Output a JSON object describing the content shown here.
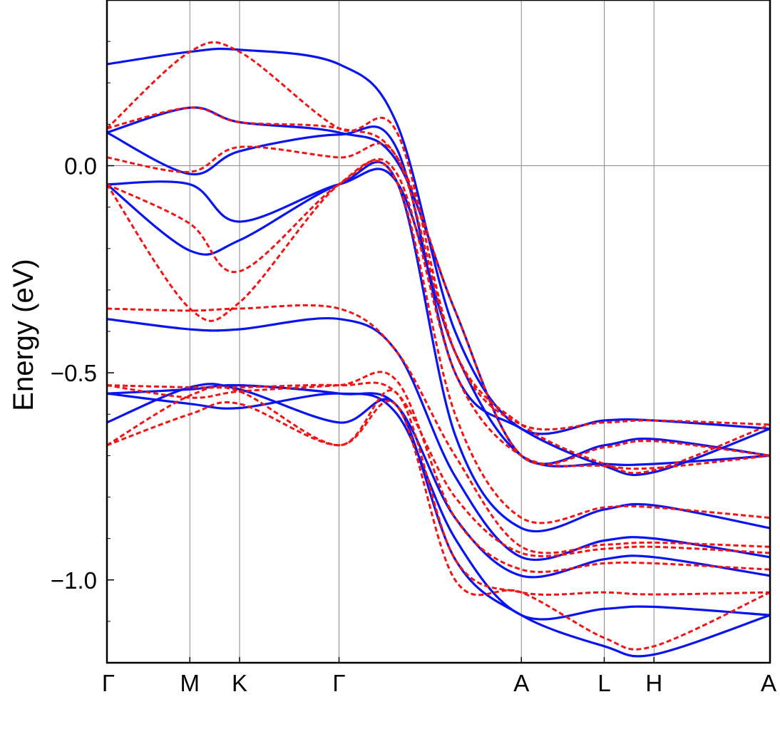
{
  "chart_data": {
    "type": "line",
    "title": "",
    "xlabel": "",
    "ylabel": "Energy (eV)",
    "ylim": [
      -1.2,
      0.4
    ],
    "xlim": [
      0,
      8
    ],
    "grid": true,
    "x_ticks": [
      {
        "label": "Γ",
        "x": 0
      },
      {
        "label": "M",
        "x": 1
      },
      {
        "label": "K",
        "x": 1.6
      },
      {
        "label": "Γ",
        "x": 2.8
      },
      {
        "label": "A",
        "x": 5
      },
      {
        "label": "L",
        "x": 6
      },
      {
        "label": "H",
        "x": 6.6
      },
      {
        "label": "A",
        "x": 8
      }
    ],
    "y_ticks": [
      {
        "label": "0.0",
        "value": 0.0
      },
      {
        "label": "-0.5",
        "value": -0.5
      },
      {
        "label": "-1.0",
        "value": -1.0
      }
    ],
    "x": [
      0,
      1,
      1.6,
      2.8,
      3.5,
      4.2,
      5,
      6,
      6.6,
      8
    ],
    "series": [
      {
        "style": "solid",
        "color": "#0a14f0",
        "values": [
          0.245,
          0.275,
          0.28,
          0.245,
          0.1,
          -0.4,
          -0.635,
          -0.615,
          -0.615,
          -0.635
        ]
      },
      {
        "style": "solid",
        "color": "#0a14f0",
        "values": [
          0.08,
          0.14,
          0.105,
          0.08,
          0.01,
          -0.35,
          -0.7,
          -0.675,
          -0.66,
          -0.7
        ]
      },
      {
        "style": "solid",
        "color": "#0a14f0",
        "values": [
          0.08,
          -0.02,
          0.035,
          0.075,
          0.04,
          -0.5,
          -0.635,
          -0.725,
          -0.74,
          -0.635
        ]
      },
      {
        "style": "solid",
        "color": "#0a14f0",
        "values": [
          -0.045,
          -0.045,
          -0.135,
          -0.045,
          -0.04,
          -0.45,
          -0.7,
          -0.72,
          -0.72,
          -0.7
        ]
      },
      {
        "style": "solid",
        "color": "#0a14f0",
        "values": [
          -0.045,
          -0.205,
          -0.18,
          -0.045,
          -0.04,
          -0.65,
          -0.875,
          -0.83,
          -0.82,
          -0.875
        ]
      },
      {
        "style": "solid",
        "color": "#0a14f0",
        "values": [
          -0.37,
          -0.395,
          -0.395,
          -0.37,
          -0.45,
          -0.75,
          -0.945,
          -0.905,
          -0.9,
          -0.945
        ]
      },
      {
        "style": "solid",
        "color": "#0a14f0",
        "values": [
          -0.55,
          -0.54,
          -0.53,
          -0.55,
          -0.58,
          -0.85,
          -0.99,
          -0.95,
          -0.945,
          -0.99
        ]
      },
      {
        "style": "solid",
        "color": "#0a14f0",
        "values": [
          -0.55,
          -0.575,
          -0.585,
          -0.55,
          -0.6,
          -0.9,
          -1.085,
          -1.07,
          -1.065,
          -1.085
        ]
      },
      {
        "style": "solid",
        "color": "#0a14f0",
        "values": [
          -0.62,
          -0.535,
          -0.54,
          -0.62,
          -0.58,
          -0.95,
          -1.085,
          -1.16,
          -1.18,
          -1.085
        ]
      },
      {
        "style": "dashed",
        "color": "#f01414",
        "values": [
          0.09,
          0.275,
          0.275,
          0.09,
          0.08,
          -0.45,
          -0.625,
          -0.62,
          -0.615,
          -0.625
        ]
      },
      {
        "style": "dashed",
        "color": "#f01414",
        "values": [
          0.09,
          0.14,
          0.105,
          0.09,
          0.02,
          -0.35,
          -0.7,
          -0.68,
          -0.665,
          -0.7
        ]
      },
      {
        "style": "dashed",
        "color": "#f01414",
        "values": [
          0.02,
          -0.015,
          0.045,
          0.02,
          0.02,
          -0.45,
          -0.625,
          -0.72,
          -0.735,
          -0.625
        ]
      },
      {
        "style": "dashed",
        "color": "#f01414",
        "values": [
          -0.045,
          -0.14,
          -0.255,
          -0.045,
          -0.02,
          -0.5,
          -0.7,
          -0.725,
          -0.73,
          -0.7
        ]
      },
      {
        "style": "dashed",
        "color": "#f01414",
        "values": [
          -0.045,
          -0.345,
          -0.33,
          -0.045,
          -0.04,
          -0.6,
          -0.85,
          -0.825,
          -0.825,
          -0.85
        ]
      },
      {
        "style": "dashed",
        "color": "#f01414",
        "values": [
          -0.345,
          -0.35,
          -0.345,
          -0.345,
          -0.45,
          -0.7,
          -0.92,
          -0.915,
          -0.91,
          -0.92
        ]
      },
      {
        "style": "dashed",
        "color": "#f01414",
        "values": [
          -0.53,
          -0.535,
          -0.535,
          -0.53,
          -0.55,
          -0.8,
          -0.935,
          -0.925,
          -0.92,
          -0.935
        ]
      },
      {
        "style": "dashed",
        "color": "#f01414",
        "values": [
          -0.53,
          -0.56,
          -0.545,
          -0.53,
          -0.52,
          -0.85,
          -0.975,
          -0.96,
          -0.96,
          -0.975
        ]
      },
      {
        "style": "dashed",
        "color": "#f01414",
        "values": [
          -0.675,
          -0.555,
          -0.545,
          -0.675,
          -0.55,
          -0.95,
          -1.03,
          -1.03,
          -1.035,
          -1.03
        ]
      },
      {
        "style": "dashed",
        "color": "#f01414",
        "values": [
          -0.675,
          -0.6,
          -0.575,
          -0.675,
          -0.58,
          -1.0,
          -1.03,
          -1.14,
          -1.16,
          -1.03
        ]
      }
    ]
  }
}
